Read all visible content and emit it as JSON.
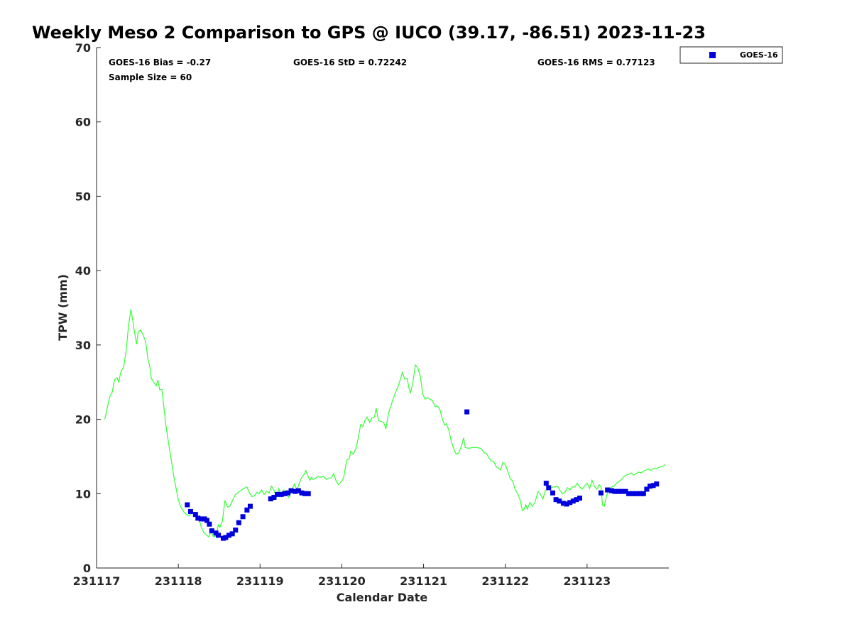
{
  "chart_data": {
    "type": "line",
    "title": "Weekly Meso 2 Comparison to GPS @ IUCO (39.17, -86.51) 2023-11-23",
    "xlabel": "Calendar Date",
    "ylabel": "TPW (mm)",
    "xlim": [
      231117,
      231124
    ],
    "ylim": [
      0,
      70
    ],
    "yticks": [
      0,
      10,
      20,
      30,
      40,
      50,
      60,
      70
    ],
    "xticks": [
      {
        "value": 231117,
        "label": "231117"
      },
      {
        "value": 231118,
        "label": "231118"
      },
      {
        "value": 231119,
        "label": "231119"
      },
      {
        "value": 231120,
        "label": "231120"
      },
      {
        "value": 231121,
        "label": "231121"
      },
      {
        "value": 231122,
        "label": "231122"
      },
      {
        "value": 231123,
        "label": "231123"
      }
    ],
    "grid": false,
    "legend_position": "top-right",
    "stats": {
      "bias": "GOES-16 Bias = -0.27",
      "std": "GOES-16 StD = 0.72242",
      "rms": "GOES-16 RMS = 0.77123",
      "sample": "Sample Size = 60"
    },
    "colors": {
      "gps_line": "#33ff33",
      "goes": "#0000dd"
    },
    "series": [
      {
        "kind": "line",
        "color": "#33ff33",
        "points": [
          [
            0.1,
            20.0
          ],
          [
            0.13,
            21.5
          ],
          [
            0.16,
            23.0
          ],
          [
            0.19,
            23.6
          ],
          [
            0.22,
            25.3
          ],
          [
            0.25,
            25.6
          ],
          [
            0.27,
            25.0
          ],
          [
            0.3,
            26.5
          ],
          [
            0.33,
            27.0
          ],
          [
            0.36,
            29.0
          ],
          [
            0.39,
            32.5
          ],
          [
            0.42,
            34.8
          ],
          [
            0.44,
            33.5
          ],
          [
            0.46,
            32.0
          ],
          [
            0.49,
            30.1
          ],
          [
            0.51,
            31.8
          ],
          [
            0.54,
            32.0
          ],
          [
            0.57,
            31.3
          ],
          [
            0.6,
            30.5
          ],
          [
            0.63,
            28.0
          ],
          [
            0.65,
            27.2
          ],
          [
            0.67,
            25.5
          ],
          [
            0.7,
            25.0
          ],
          [
            0.73,
            24.5
          ],
          [
            0.75,
            25.3
          ],
          [
            0.77,
            24.0
          ],
          [
            0.8,
            24.0
          ],
          [
            0.82,
            22.0
          ],
          [
            0.85,
            19.0
          ],
          [
            0.9,
            15.5
          ],
          [
            0.95,
            12.0
          ],
          [
            1.0,
            9.2
          ],
          [
            1.03,
            8.2
          ],
          [
            1.07,
            7.5
          ],
          [
            1.1,
            7.2
          ],
          [
            1.13,
            7.0
          ],
          [
            1.16,
            7.5
          ],
          [
            1.19,
            7.2
          ],
          [
            1.22,
            6.9
          ],
          [
            1.25,
            6.7
          ],
          [
            1.28,
            5.5
          ],
          [
            1.31,
            4.8
          ],
          [
            1.34,
            4.5
          ],
          [
            1.37,
            4.2
          ],
          [
            1.4,
            4.9
          ],
          [
            1.43,
            4.2
          ],
          [
            1.46,
            4.3
          ],
          [
            1.49,
            5.8
          ],
          [
            1.51,
            5.5
          ],
          [
            1.54,
            6.3
          ],
          [
            1.57,
            9.1
          ],
          [
            1.6,
            8.2
          ],
          [
            1.63,
            8.3
          ],
          [
            1.66,
            9.0
          ],
          [
            1.7,
            9.9
          ],
          [
            1.75,
            10.3
          ],
          [
            1.8,
            10.7
          ],
          [
            1.84,
            10.9
          ],
          [
            1.87,
            10.1
          ],
          [
            1.9,
            9.6
          ],
          [
            1.93,
            9.7
          ],
          [
            1.96,
            10.2
          ],
          [
            1.99,
            10.0
          ],
          [
            2.02,
            10.5
          ],
          [
            2.05,
            9.9
          ],
          [
            2.08,
            10.3
          ],
          [
            2.11,
            10.1
          ],
          [
            2.14,
            11.0
          ],
          [
            2.17,
            10.5
          ],
          [
            2.2,
            9.5
          ],
          [
            2.23,
            10.7
          ],
          [
            2.26,
            9.6
          ],
          [
            2.29,
            10.5
          ],
          [
            2.32,
            10.0
          ],
          [
            2.35,
            9.5
          ],
          [
            2.38,
            10.2
          ],
          [
            2.42,
            11.3
          ],
          [
            2.45,
            10.5
          ],
          [
            2.48,
            11.4
          ],
          [
            2.51,
            12.2
          ],
          [
            2.54,
            12.6
          ],
          [
            2.56,
            13.1
          ],
          [
            2.58,
            12.5
          ],
          [
            2.61,
            11.8
          ],
          [
            2.63,
            12.2
          ],
          [
            2.65,
            11.9
          ],
          [
            2.68,
            12.1
          ],
          [
            2.71,
            12.3
          ],
          [
            2.74,
            12.2
          ],
          [
            2.78,
            12.3
          ],
          [
            2.81,
            11.9
          ],
          [
            2.84,
            12.1
          ],
          [
            2.87,
            12.1
          ],
          [
            2.9,
            12.7
          ],
          [
            2.93,
            11.7
          ],
          [
            2.96,
            11.2
          ],
          [
            2.99,
            11.6
          ],
          [
            3.02,
            12.0
          ],
          [
            3.06,
            14.5
          ],
          [
            3.09,
            14.7
          ],
          [
            3.11,
            15.7
          ],
          [
            3.14,
            15.3
          ],
          [
            3.17,
            16.0
          ],
          [
            3.2,
            17.4
          ],
          [
            3.23,
            19.3
          ],
          [
            3.26,
            19.0
          ],
          [
            3.28,
            19.8
          ],
          [
            3.31,
            20.3
          ],
          [
            3.34,
            19.6
          ],
          [
            3.37,
            20.2
          ],
          [
            3.4,
            20.3
          ],
          [
            3.42,
            21.5
          ],
          [
            3.45,
            19.8
          ],
          [
            3.48,
            19.7
          ],
          [
            3.51,
            19.6
          ],
          [
            3.54,
            18.7
          ],
          [
            3.57,
            20.8
          ],
          [
            3.6,
            21.8
          ],
          [
            3.63,
            22.8
          ],
          [
            3.66,
            23.7
          ],
          [
            3.69,
            24.5
          ],
          [
            3.72,
            25.5
          ],
          [
            3.74,
            26.3
          ],
          [
            3.77,
            25.4
          ],
          [
            3.8,
            25.5
          ],
          [
            3.82,
            24.3
          ],
          [
            3.84,
            23.5
          ],
          [
            3.87,
            25.0
          ],
          [
            3.9,
            27.3
          ],
          [
            3.93,
            26.9
          ],
          [
            3.96,
            25.8
          ],
          [
            3.99,
            23.4
          ],
          [
            4.02,
            22.7
          ],
          [
            4.05,
            22.9
          ],
          [
            4.08,
            22.7
          ],
          [
            4.11,
            22.5
          ],
          [
            4.14,
            21.7
          ],
          [
            4.17,
            21.8
          ],
          [
            4.2,
            21.3
          ],
          [
            4.23,
            20.0
          ],
          [
            4.26,
            19.2
          ],
          [
            4.28,
            19.4
          ],
          [
            4.31,
            18.5
          ],
          [
            4.34,
            17.0
          ],
          [
            4.37,
            16.0
          ],
          [
            4.4,
            15.3
          ],
          [
            4.43,
            15.5
          ],
          [
            4.46,
            16.3
          ],
          [
            4.49,
            17.5
          ],
          [
            4.51,
            16.2
          ],
          [
            4.55,
            16.1
          ],
          [
            4.6,
            16.2
          ],
          [
            4.65,
            16.2
          ],
          [
            4.7,
            16.1
          ],
          [
            4.74,
            15.5
          ],
          [
            4.77,
            15.4
          ],
          [
            4.8,
            14.8
          ],
          [
            4.83,
            14.4
          ],
          [
            4.86,
            14.3
          ],
          [
            4.89,
            13.6
          ],
          [
            4.92,
            13.4
          ],
          [
            4.94,
            13.2
          ],
          [
            4.97,
            14.2
          ],
          [
            5.0,
            13.9
          ],
          [
            5.03,
            13.0
          ],
          [
            5.06,
            12.0
          ],
          [
            5.09,
            11.7
          ],
          [
            5.12,
            10.6
          ],
          [
            5.15,
            10.0
          ],
          [
            5.18,
            9.2
          ],
          [
            5.21,
            7.7
          ],
          [
            5.23,
            7.9
          ],
          [
            5.25,
            8.5
          ],
          [
            5.27,
            7.9
          ],
          [
            5.3,
            8.8
          ],
          [
            5.33,
            8.3
          ],
          [
            5.36,
            8.8
          ],
          [
            5.38,
            9.5
          ],
          [
            5.4,
            10.3
          ],
          [
            5.43,
            9.9
          ],
          [
            5.46,
            9.3
          ],
          [
            5.49,
            10.4
          ],
          [
            5.52,
            10.6
          ],
          [
            5.55,
            10.7
          ],
          [
            5.58,
            10.9
          ],
          [
            5.61,
            10.9
          ],
          [
            5.64,
            11.0
          ],
          [
            5.67,
            10.4
          ],
          [
            5.7,
            10.0
          ],
          [
            5.73,
            10.2
          ],
          [
            5.76,
            10.8
          ],
          [
            5.79,
            10.5
          ],
          [
            5.82,
            10.9
          ],
          [
            5.85,
            10.9
          ],
          [
            5.88,
            11.4
          ],
          [
            5.91,
            10.9
          ],
          [
            5.94,
            10.6
          ],
          [
            5.97,
            11.0
          ],
          [
            6.0,
            11.4
          ],
          [
            6.03,
            10.7
          ],
          [
            6.06,
            11.8
          ],
          [
            6.09,
            11.0
          ],
          [
            6.12,
            10.6
          ],
          [
            6.15,
            11.2
          ],
          [
            6.17,
            10.9
          ],
          [
            6.19,
            8.4
          ],
          [
            6.21,
            8.3
          ],
          [
            6.24,
            9.8
          ],
          [
            6.27,
            10.6
          ],
          [
            6.3,
            10.9
          ],
          [
            6.33,
            11.0
          ],
          [
            6.36,
            11.4
          ],
          [
            6.39,
            11.6
          ],
          [
            6.42,
            11.9
          ],
          [
            6.45,
            12.3
          ],
          [
            6.48,
            12.5
          ],
          [
            6.51,
            12.6
          ],
          [
            6.54,
            12.8
          ],
          [
            6.57,
            12.5
          ],
          [
            6.6,
            12.7
          ],
          [
            6.63,
            12.9
          ],
          [
            6.66,
            12.8
          ],
          [
            6.69,
            13.0
          ],
          [
            6.72,
            13.2
          ],
          [
            6.75,
            13.3
          ],
          [
            6.78,
            13.1
          ],
          [
            6.81,
            13.4
          ],
          [
            6.84,
            13.3
          ],
          [
            6.87,
            13.5
          ],
          [
            6.9,
            13.6
          ],
          [
            6.93,
            13.7
          ],
          [
            6.96,
            13.9
          ]
        ]
      },
      {
        "kind": "scatter",
        "name": "GOES-16",
        "color": "#0000dd",
        "points": [
          [
            1.11,
            8.5
          ],
          [
            1.15,
            7.6
          ],
          [
            1.21,
            7.2
          ],
          [
            1.24,
            6.7
          ],
          [
            1.28,
            6.6
          ],
          [
            1.32,
            6.6
          ],
          [
            1.35,
            6.4
          ],
          [
            1.38,
            5.9
          ],
          [
            1.41,
            5.0
          ],
          [
            1.46,
            4.7
          ],
          [
            1.49,
            4.4
          ],
          [
            1.55,
            4.0
          ],
          [
            1.58,
            4.1
          ],
          [
            1.62,
            4.4
          ],
          [
            1.66,
            4.6
          ],
          [
            1.7,
            5.1
          ],
          [
            1.74,
            6.1
          ],
          [
            1.79,
            6.9
          ],
          [
            1.84,
            7.8
          ],
          [
            1.88,
            8.3
          ],
          [
            2.13,
            9.3
          ],
          [
            2.17,
            9.5
          ],
          [
            2.21,
            9.9
          ],
          [
            2.26,
            9.9
          ],
          [
            2.3,
            10.0
          ],
          [
            2.34,
            10.1
          ],
          [
            2.38,
            10.4
          ],
          [
            2.43,
            10.3
          ],
          [
            2.47,
            10.4
          ],
          [
            2.51,
            10.1
          ],
          [
            2.55,
            10.0
          ],
          [
            2.59,
            10.0
          ],
          [
            4.53,
            21.0
          ],
          [
            5.5,
            11.4
          ],
          [
            5.53,
            10.8
          ],
          [
            5.58,
            10.1
          ],
          [
            5.62,
            9.2
          ],
          [
            5.66,
            9.0
          ],
          [
            5.71,
            8.7
          ],
          [
            5.75,
            8.6
          ],
          [
            5.79,
            8.8
          ],
          [
            5.83,
            9.0
          ],
          [
            5.87,
            9.2
          ],
          [
            5.91,
            9.4
          ],
          [
            6.17,
            10.1
          ],
          [
            6.25,
            10.5
          ],
          [
            6.3,
            10.4
          ],
          [
            6.34,
            10.3
          ],
          [
            6.38,
            10.3
          ],
          [
            6.42,
            10.3
          ],
          [
            6.47,
            10.3
          ],
          [
            6.51,
            10.0
          ],
          [
            6.56,
            10.0
          ],
          [
            6.6,
            10.0
          ],
          [
            6.65,
            10.0
          ],
          [
            6.69,
            10.0
          ],
          [
            6.73,
            10.6
          ],
          [
            6.77,
            11.0
          ],
          [
            6.81,
            11.1
          ],
          [
            6.85,
            11.3
          ]
        ]
      }
    ]
  }
}
